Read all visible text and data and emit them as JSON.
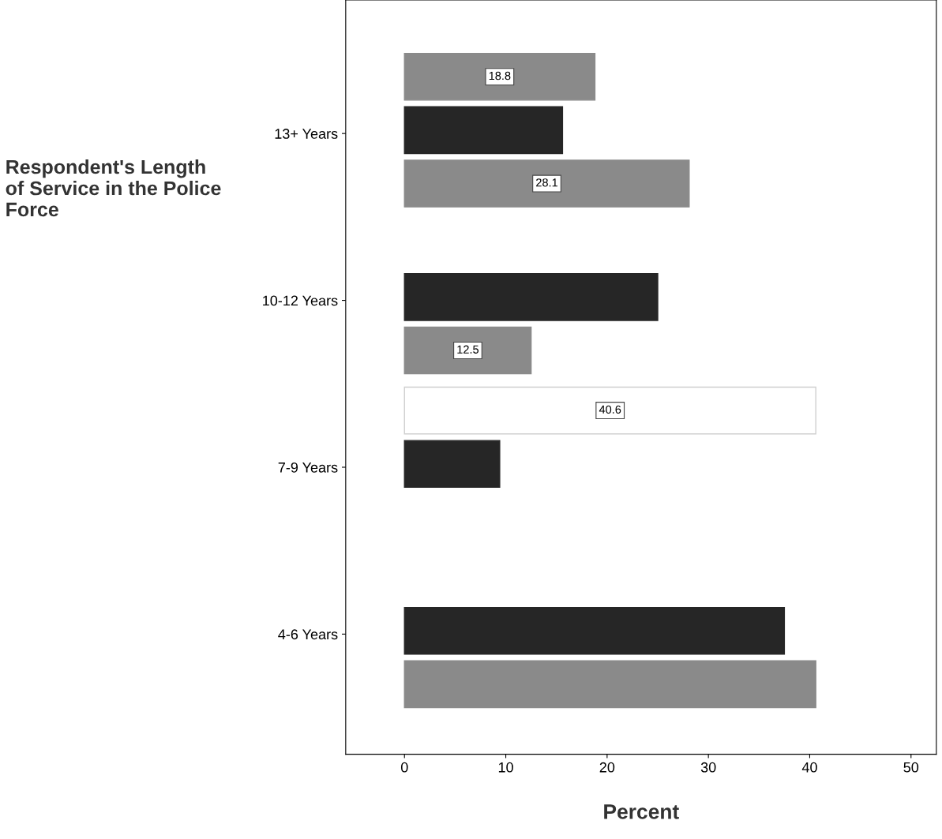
{
  "chart_data": {
    "type": "bar",
    "orientation": "horizontal",
    "categories": [
      "13+ Years",
      "10-12 Years",
      "7-9 Years",
      "4-6 Years"
    ],
    "series": [
      {
        "colors": [
          "#8a8a8a",
          "#8a8a8a",
          "#ffffff",
          "#8a8a8a"
        ],
        "values": [
          18.8,
          null,
          40.6,
          null
        ],
        "value_labels": [
          "18.8",
          null,
          "40.6",
          null
        ]
      },
      {
        "color": "#262626",
        "values": [
          15.6,
          25.0,
          9.4,
          37.5
        ]
      },
      {
        "color": "#8a8a8a",
        "values": [
          28.1,
          12.5,
          null,
          40.6
        ],
        "value_labels": [
          "28.1",
          "12.5",
          null,
          null
        ]
      }
    ],
    "xlim": [
      -5.8,
      52.5
    ],
    "xticks": [
      0,
      10,
      20,
      30,
      40,
      50
    ],
    "xlabel": "Percent",
    "ylabel": "Respondent's Length of Service in the Police Force",
    "grid": false,
    "legend": false
  }
}
